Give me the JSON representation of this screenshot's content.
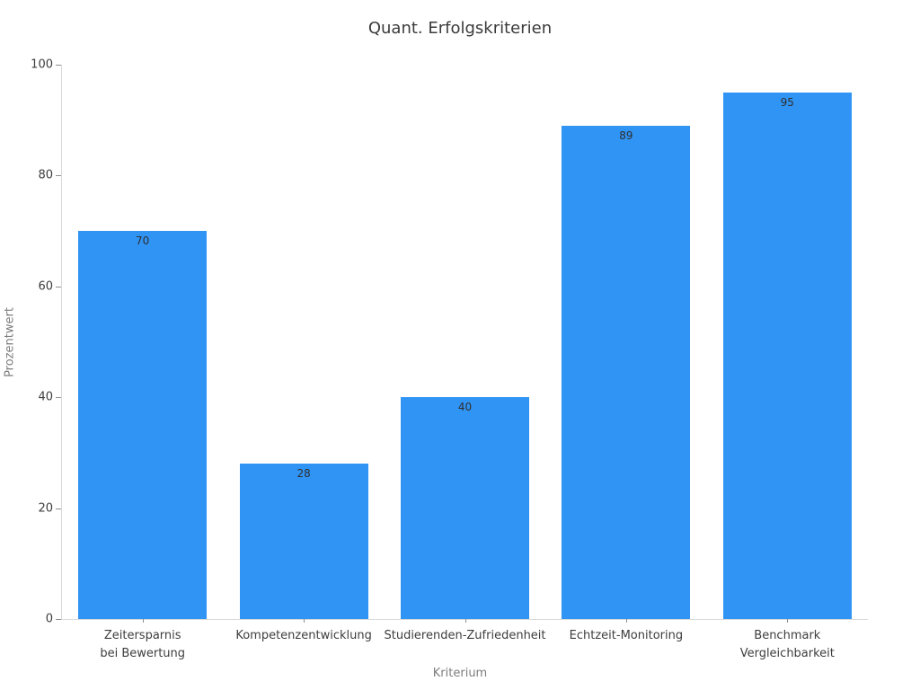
{
  "colors": {
    "background": "#ffffff",
    "bar": "#3094f5",
    "spine": "#d9d9d9",
    "tick": "#8f8f8f",
    "tick_label": "#3d3d3d",
    "axis_title": "#7d7d7d",
    "title": "#3a3a3a",
    "value_label": "#2f2f2f"
  },
  "chart_data": {
    "type": "bar",
    "title": "Quant. Erfolgskriterien",
    "xlabel": "Kriterium",
    "ylabel": "Prozentwert",
    "categories": [
      "Zeitersparnis\nbei Bewertung",
      "Kompetenzentwicklung",
      "Studierenden-Zufriedenheit",
      "Echtzeit-Monitoring",
      "Benchmark\nVergleichbarkeit"
    ],
    "values": [
      70,
      28,
      40,
      89,
      95
    ],
    "value_labels_shown": true,
    "ylim": [
      0,
      100
    ],
    "yticks": [
      0,
      20,
      40,
      60,
      80,
      100
    ],
    "grid": false,
    "legend": "none"
  }
}
